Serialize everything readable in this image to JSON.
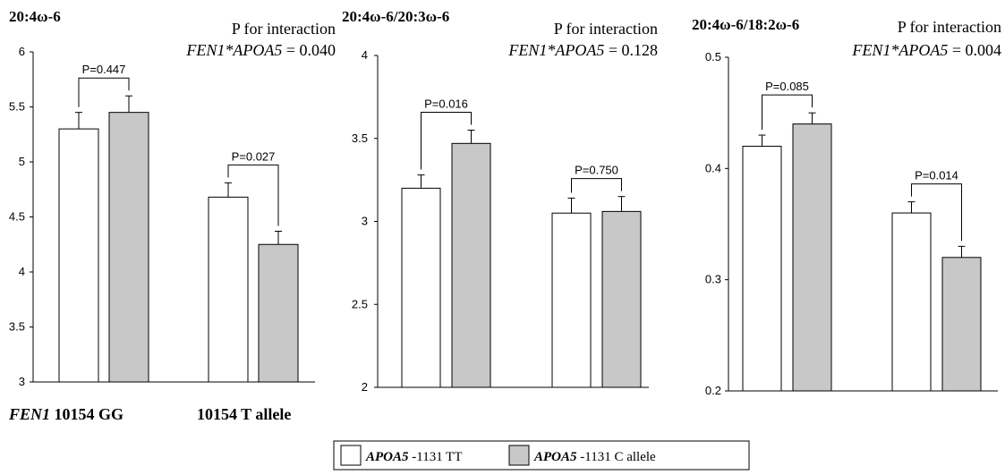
{
  "colors": {
    "tt": "#ffffff",
    "callele": "#c8c8c8",
    "stroke": "#000000"
  },
  "legend": {
    "items": [
      {
        "gene": "APOA5",
        "rest": " -1131 TT",
        "color": "#ffffff"
      },
      {
        "gene": "APOA5",
        "rest": " -1131 C allele",
        "color": "#c8c8c8"
      }
    ]
  },
  "x_labels": {
    "gene": "FEN1",
    "gg": " 10154 GG",
    "t": "10154 T allele"
  },
  "chart_data": [
    {
      "type": "bar",
      "title": "20:4ω-6",
      "interaction_line1": "P for interaction",
      "interaction_gene": "FEN1*APOA5",
      "interaction_value": " = 0.040",
      "categories": [
        "FEN1 10154 GG",
        "10154 T allele"
      ],
      "series": [
        {
          "name": "APOA5 -1131 TT",
          "values": [
            5.3,
            4.68
          ],
          "errors": [
            0.15,
            0.13
          ]
        },
        {
          "name": "APOA5 -1131 C allele",
          "values": [
            5.45,
            4.25
          ],
          "errors": [
            0.15,
            0.12
          ]
        }
      ],
      "pvalues": [
        "P=0.447",
        "P=0.027"
      ],
      "ylim": [
        3,
        6
      ],
      "yticks": [
        3,
        3.5,
        4,
        4.5,
        5,
        5.5,
        6
      ],
      "ytick_labels": [
        "3",
        "3.5",
        "4",
        "4.5",
        "5",
        "5.5",
        "6"
      ]
    },
    {
      "type": "bar",
      "title": "20:4ω-6/20:3ω-6",
      "interaction_line1": "P for interaction",
      "interaction_gene": "FEN1*APOA5",
      "interaction_value": " = 0.128",
      "categories": [
        "FEN1 10154 GG",
        "10154 T allele"
      ],
      "series": [
        {
          "name": "APOA5 -1131 TT",
          "values": [
            3.2,
            3.05
          ],
          "errors": [
            0.08,
            0.09
          ]
        },
        {
          "name": "APOA5 -1131 C allele",
          "values": [
            3.47,
            3.06
          ],
          "errors": [
            0.08,
            0.09
          ]
        }
      ],
      "pvalues": [
        "P=0.016",
        "P=0.750"
      ],
      "ylim": [
        2,
        4
      ],
      "yticks": [
        2,
        2.5,
        3,
        3.5,
        4
      ],
      "ytick_labels": [
        "2",
        "2.5",
        "3",
        "3.5",
        "4"
      ]
    },
    {
      "type": "bar",
      "title": "20:4ω-6/18:2ω-6",
      "interaction_line1": "P for interaction",
      "interaction_gene": "FEN1*APOA5",
      "interaction_value": " = 0.004",
      "categories": [
        "FEN1 10154 GG",
        "10154 T allele"
      ],
      "series": [
        {
          "name": "APOA5 -1131 TT",
          "values": [
            0.42,
            0.36
          ],
          "errors": [
            0.01,
            0.01
          ]
        },
        {
          "name": "APOA5 -1131 C allele",
          "values": [
            0.44,
            0.32
          ],
          "errors": [
            0.01,
            0.01
          ]
        }
      ],
      "pvalues": [
        "P=0.085",
        "P=0.014"
      ],
      "ylim": [
        0.2,
        0.5
      ],
      "yticks": [
        0.2,
        0.3,
        0.4,
        0.5
      ],
      "ytick_labels": [
        "0.2",
        "0.3",
        "0.4",
        "0.5"
      ]
    }
  ]
}
